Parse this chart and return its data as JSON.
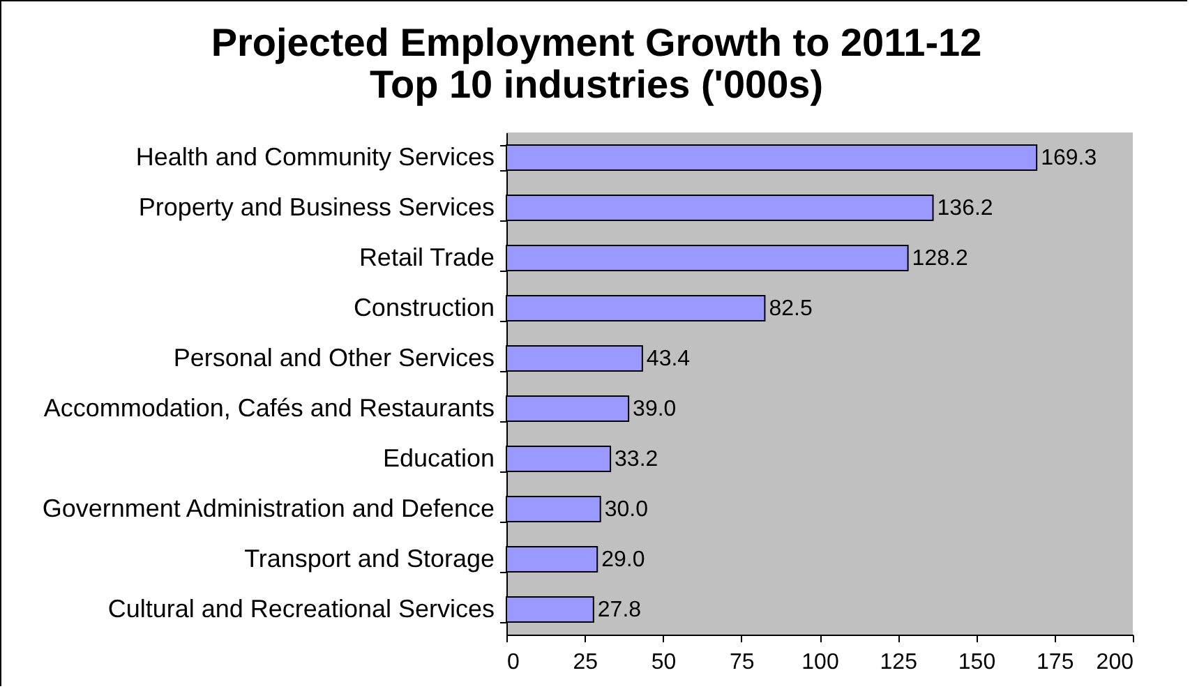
{
  "chart_data": {
    "type": "bar",
    "orientation": "horizontal",
    "title": "Projected Employment Growth to 2011-12",
    "subtitle": "Top 10 industries ('000s)",
    "categories": [
      "Health and Community Services",
      "Property and Business Services",
      "Retail Trade",
      "Construction",
      "Personal and Other Services",
      "Accommodation, Cafés and Restaurants",
      "Education",
      "Government Administration and Defence",
      "Transport and Storage",
      "Cultural and Recreational Services"
    ],
    "values": [
      169.3,
      136.2,
      128.2,
      82.5,
      43.4,
      39.0,
      33.2,
      30.0,
      29.0,
      27.8
    ],
    "value_labels": [
      "169.3",
      "136.2",
      "128.2",
      "82.5",
      "43.4",
      "39.0",
      "33.2",
      "30.0",
      "29.0",
      "27.8"
    ],
    "color": "#9999ff",
    "xlim": [
      0,
      200
    ],
    "xticks": [
      0,
      25,
      50,
      75,
      100,
      125,
      150,
      175,
      200
    ],
    "grid": false
  }
}
